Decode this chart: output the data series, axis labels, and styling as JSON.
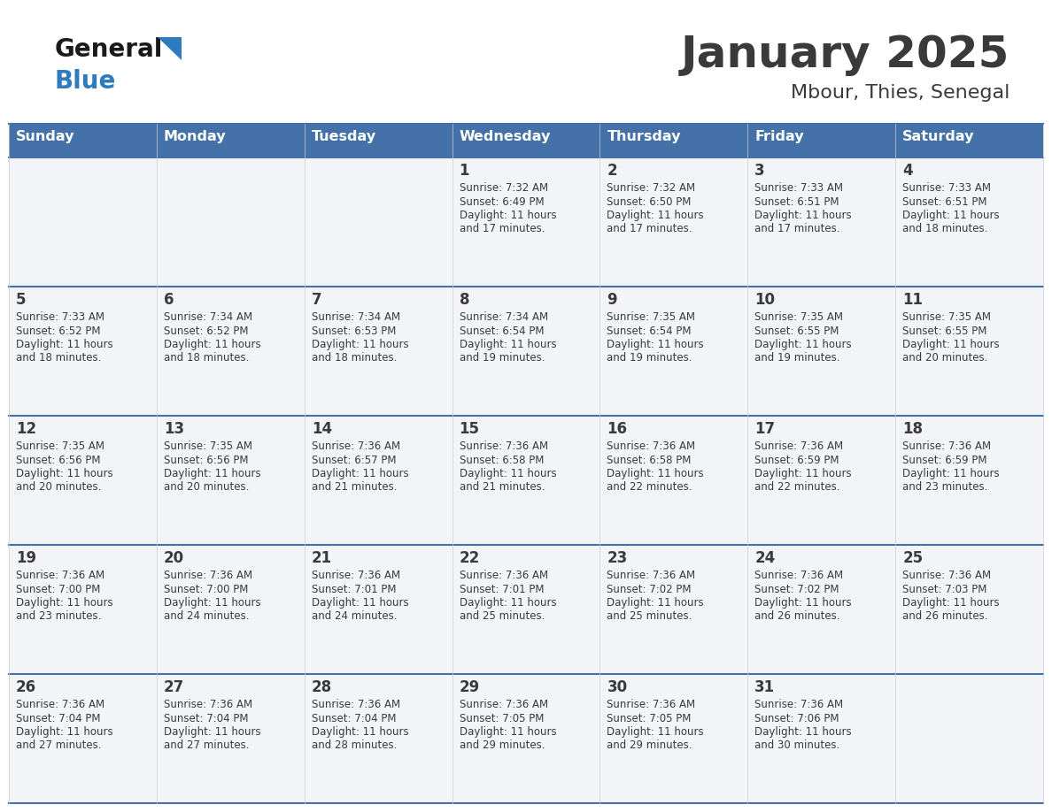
{
  "title": "January 2025",
  "subtitle": "Mbour, Thies, Senegal",
  "header_bg": "#4472a8",
  "header_text_color": "#ffffff",
  "cell_bg": "#f2f4f7",
  "line_color": "#4472a8",
  "text_color": "#3a3a3a",
  "days_of_week": [
    "Sunday",
    "Monday",
    "Tuesday",
    "Wednesday",
    "Thursday",
    "Friday",
    "Saturday"
  ],
  "calendar": [
    [
      {
        "day": null
      },
      {
        "day": null
      },
      {
        "day": null
      },
      {
        "day": 1,
        "sunrise": "7:32 AM",
        "sunset": "6:49 PM",
        "daylight": "11 hours and 17 minutes."
      },
      {
        "day": 2,
        "sunrise": "7:32 AM",
        "sunset": "6:50 PM",
        "daylight": "11 hours and 17 minutes."
      },
      {
        "day": 3,
        "sunrise": "7:33 AM",
        "sunset": "6:51 PM",
        "daylight": "11 hours and 17 minutes."
      },
      {
        "day": 4,
        "sunrise": "7:33 AM",
        "sunset": "6:51 PM",
        "daylight": "11 hours and 18 minutes."
      }
    ],
    [
      {
        "day": 5,
        "sunrise": "7:33 AM",
        "sunset": "6:52 PM",
        "daylight": "11 hours and 18 minutes."
      },
      {
        "day": 6,
        "sunrise": "7:34 AM",
        "sunset": "6:52 PM",
        "daylight": "11 hours and 18 minutes."
      },
      {
        "day": 7,
        "sunrise": "7:34 AM",
        "sunset": "6:53 PM",
        "daylight": "11 hours and 18 minutes."
      },
      {
        "day": 8,
        "sunrise": "7:34 AM",
        "sunset": "6:54 PM",
        "daylight": "11 hours and 19 minutes."
      },
      {
        "day": 9,
        "sunrise": "7:35 AM",
        "sunset": "6:54 PM",
        "daylight": "11 hours and 19 minutes."
      },
      {
        "day": 10,
        "sunrise": "7:35 AM",
        "sunset": "6:55 PM",
        "daylight": "11 hours and 19 minutes."
      },
      {
        "day": 11,
        "sunrise": "7:35 AM",
        "sunset": "6:55 PM",
        "daylight": "11 hours and 20 minutes."
      }
    ],
    [
      {
        "day": 12,
        "sunrise": "7:35 AM",
        "sunset": "6:56 PM",
        "daylight": "11 hours and 20 minutes."
      },
      {
        "day": 13,
        "sunrise": "7:35 AM",
        "sunset": "6:56 PM",
        "daylight": "11 hours and 20 minutes."
      },
      {
        "day": 14,
        "sunrise": "7:36 AM",
        "sunset": "6:57 PM",
        "daylight": "11 hours and 21 minutes."
      },
      {
        "day": 15,
        "sunrise": "7:36 AM",
        "sunset": "6:58 PM",
        "daylight": "11 hours and 21 minutes."
      },
      {
        "day": 16,
        "sunrise": "7:36 AM",
        "sunset": "6:58 PM",
        "daylight": "11 hours and 22 minutes."
      },
      {
        "day": 17,
        "sunrise": "7:36 AM",
        "sunset": "6:59 PM",
        "daylight": "11 hours and 22 minutes."
      },
      {
        "day": 18,
        "sunrise": "7:36 AM",
        "sunset": "6:59 PM",
        "daylight": "11 hours and 23 minutes."
      }
    ],
    [
      {
        "day": 19,
        "sunrise": "7:36 AM",
        "sunset": "7:00 PM",
        "daylight": "11 hours and 23 minutes."
      },
      {
        "day": 20,
        "sunrise": "7:36 AM",
        "sunset": "7:00 PM",
        "daylight": "11 hours and 24 minutes."
      },
      {
        "day": 21,
        "sunrise": "7:36 AM",
        "sunset": "7:01 PM",
        "daylight": "11 hours and 24 minutes."
      },
      {
        "day": 22,
        "sunrise": "7:36 AM",
        "sunset": "7:01 PM",
        "daylight": "11 hours and 25 minutes."
      },
      {
        "day": 23,
        "sunrise": "7:36 AM",
        "sunset": "7:02 PM",
        "daylight": "11 hours and 25 minutes."
      },
      {
        "day": 24,
        "sunrise": "7:36 AM",
        "sunset": "7:02 PM",
        "daylight": "11 hours and 26 minutes."
      },
      {
        "day": 25,
        "sunrise": "7:36 AM",
        "sunset": "7:03 PM",
        "daylight": "11 hours and 26 minutes."
      }
    ],
    [
      {
        "day": 26,
        "sunrise": "7:36 AM",
        "sunset": "7:04 PM",
        "daylight": "11 hours and 27 minutes."
      },
      {
        "day": 27,
        "sunrise": "7:36 AM",
        "sunset": "7:04 PM",
        "daylight": "11 hours and 27 minutes."
      },
      {
        "day": 28,
        "sunrise": "7:36 AM",
        "sunset": "7:04 PM",
        "daylight": "11 hours and 28 minutes."
      },
      {
        "day": 29,
        "sunrise": "7:36 AM",
        "sunset": "7:05 PM",
        "daylight": "11 hours and 29 minutes."
      },
      {
        "day": 30,
        "sunrise": "7:36 AM",
        "sunset": "7:05 PM",
        "daylight": "11 hours and 29 minutes."
      },
      {
        "day": 31,
        "sunrise": "7:36 AM",
        "sunset": "7:06 PM",
        "daylight": "11 hours and 30 minutes."
      },
      {
        "day": null
      }
    ]
  ],
  "logo_general_color": "#1a1a1a",
  "logo_blue_color": "#2e7bbf",
  "logo_triangle_color": "#2e7bbf",
  "title_fontsize": 36,
  "subtitle_fontsize": 16,
  "header_fontsize": 11.5,
  "day_num_fontsize": 12,
  "cell_text_fontsize": 8.5
}
